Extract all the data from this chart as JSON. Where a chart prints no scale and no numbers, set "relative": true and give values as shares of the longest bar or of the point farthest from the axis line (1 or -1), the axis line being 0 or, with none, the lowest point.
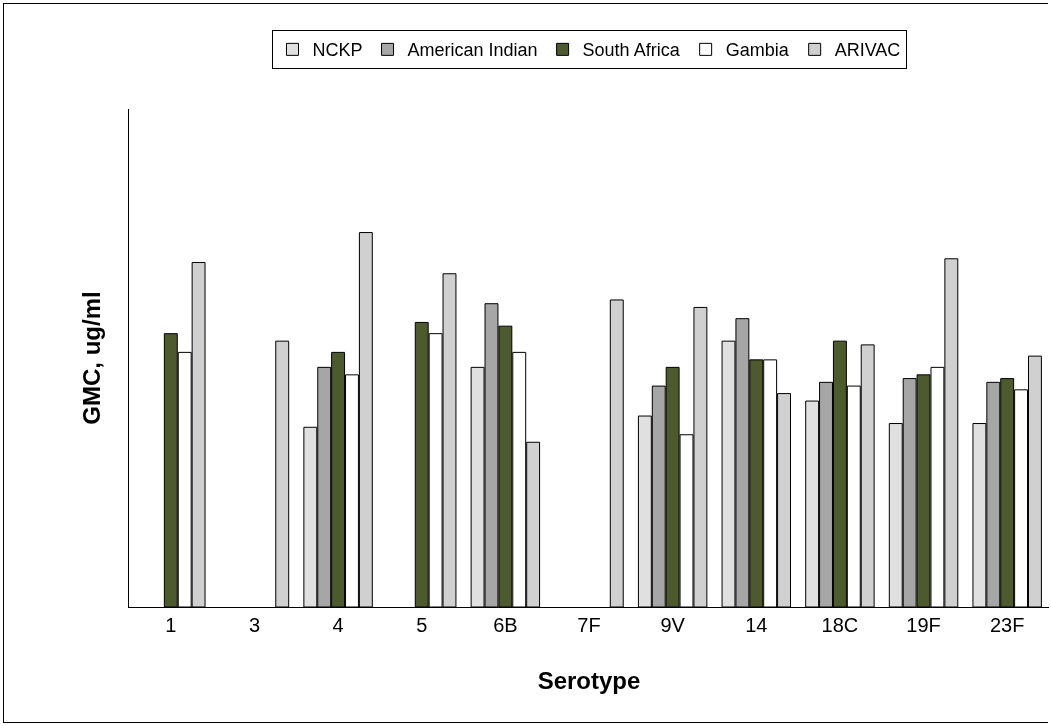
{
  "chart_data": {
    "type": "bar",
    "relative": true,
    "xlabel": "Serotype",
    "ylabel": "GMC, ug/ml",
    "legend": "top",
    "categories": [
      "1",
      "3",
      "4",
      "5",
      "6B",
      "7F",
      "9V",
      "14",
      "18C",
      "19F",
      "23F"
    ],
    "series": [
      {
        "name": "NCKP",
        "color": "#e0e0e0",
        "values": [
          null,
          null,
          0.48,
          null,
          0.64,
          null,
          0.51,
          0.71,
          0.55,
          0.49,
          0.49
        ]
      },
      {
        "name": "American Indian",
        "color": "#a6a6a6",
        "values": [
          null,
          null,
          0.64,
          null,
          0.81,
          null,
          0.59,
          0.77,
          0.6,
          0.61,
          0.6
        ]
      },
      {
        "name": "South Africa",
        "color": "#4d5a2e",
        "values": [
          0.73,
          null,
          0.68,
          0.76,
          0.75,
          null,
          0.64,
          0.66,
          0.71,
          0.62,
          0.61
        ]
      },
      {
        "name": "Gambia",
        "color": "#ffffff",
        "values": [
          0.68,
          null,
          0.62,
          0.73,
          0.68,
          null,
          0.46,
          0.66,
          0.59,
          0.64,
          0.58
        ]
      },
      {
        "name": "ARIVAC",
        "color": "#d0d0d0",
        "values": [
          0.92,
          0.71,
          1,
          0.89,
          0.44,
          0.82,
          0.8,
          0.57,
          0.7,
          0.93,
          0.67
        ]
      }
    ]
  }
}
